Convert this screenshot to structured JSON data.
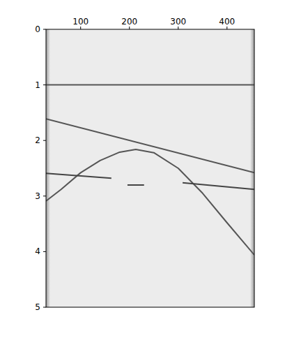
{
  "chart_data": {
    "type": "line",
    "xlim": [
      29,
      456
    ],
    "xticks": [
      100,
      200,
      300,
      400
    ],
    "ylim": [
      5,
      0
    ],
    "yticks": [
      0,
      1,
      2,
      3,
      4,
      5
    ],
    "grid": false,
    "series": [
      {
        "color": "#555555",
        "x": [
          29,
          456
        ],
        "values": [
          1.0,
          1.0
        ]
      },
      {
        "color": "#555555",
        "x": [
          29,
          456
        ],
        "values": [
          1.61,
          2.58
        ]
      },
      {
        "color": "#555555",
        "x": [
          29,
          60,
          100,
          140,
          180,
          213,
          250,
          300,
          350,
          400,
          456
        ],
        "values": [
          3.09,
          2.88,
          2.58,
          2.36,
          2.21,
          2.16,
          2.22,
          2.5,
          2.95,
          3.48,
          4.06
        ]
      },
      {
        "color": "#444444",
        "x": [
          29,
          163,
          180,
          196,
          230,
          270,
          309,
          456
        ],
        "values": [
          2.59,
          2.68,
          null,
          2.8,
          2.8,
          null,
          2.76,
          2.88
        ]
      }
    ]
  }
}
